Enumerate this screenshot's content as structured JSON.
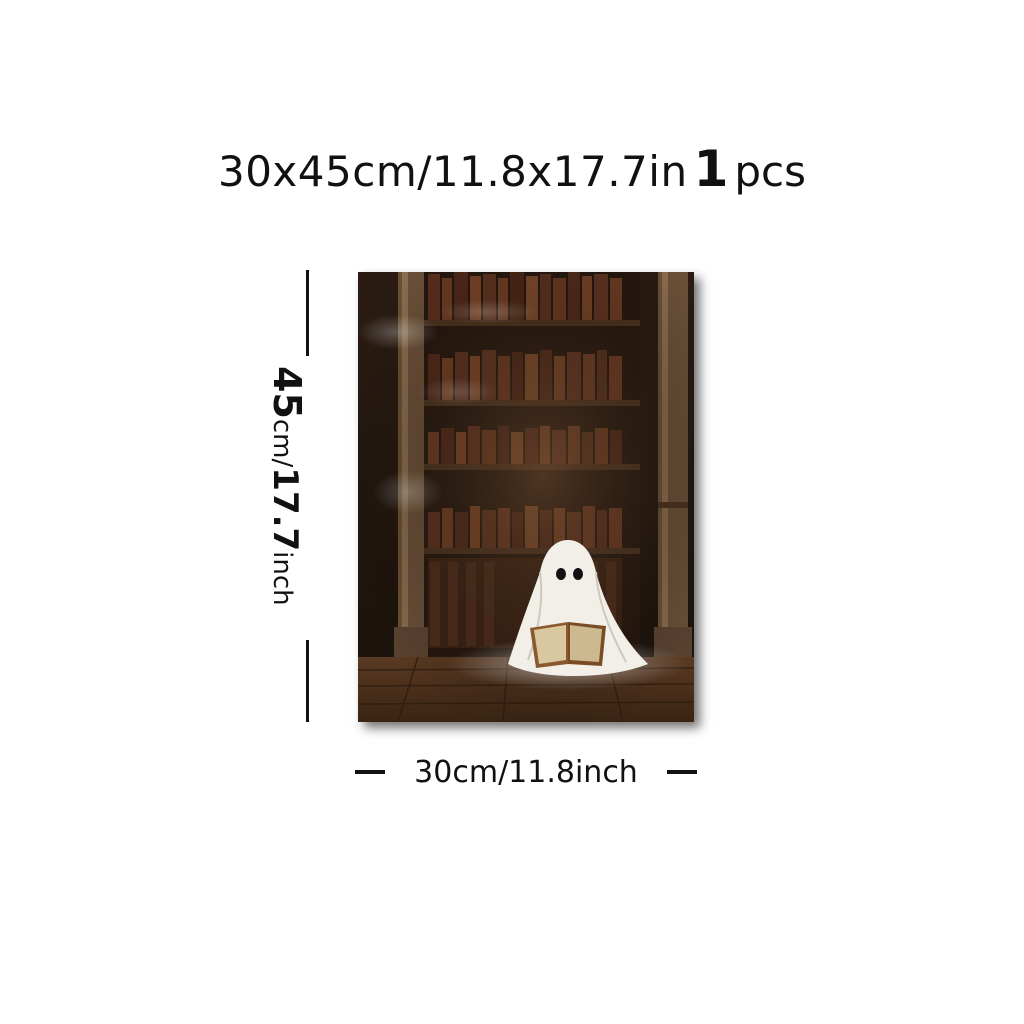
{
  "title": {
    "size": "30x45cm/11.8x17.7in",
    "quantity": "1",
    "quantity_unit": "pcs"
  },
  "height_label": {
    "value": "45",
    "unit": "cm/",
    "value2": "17.7",
    "unit2": "inch"
  },
  "width_label": "30cm/11.8inch",
  "poster": {
    "subject": "ghost-reading-in-library"
  }
}
